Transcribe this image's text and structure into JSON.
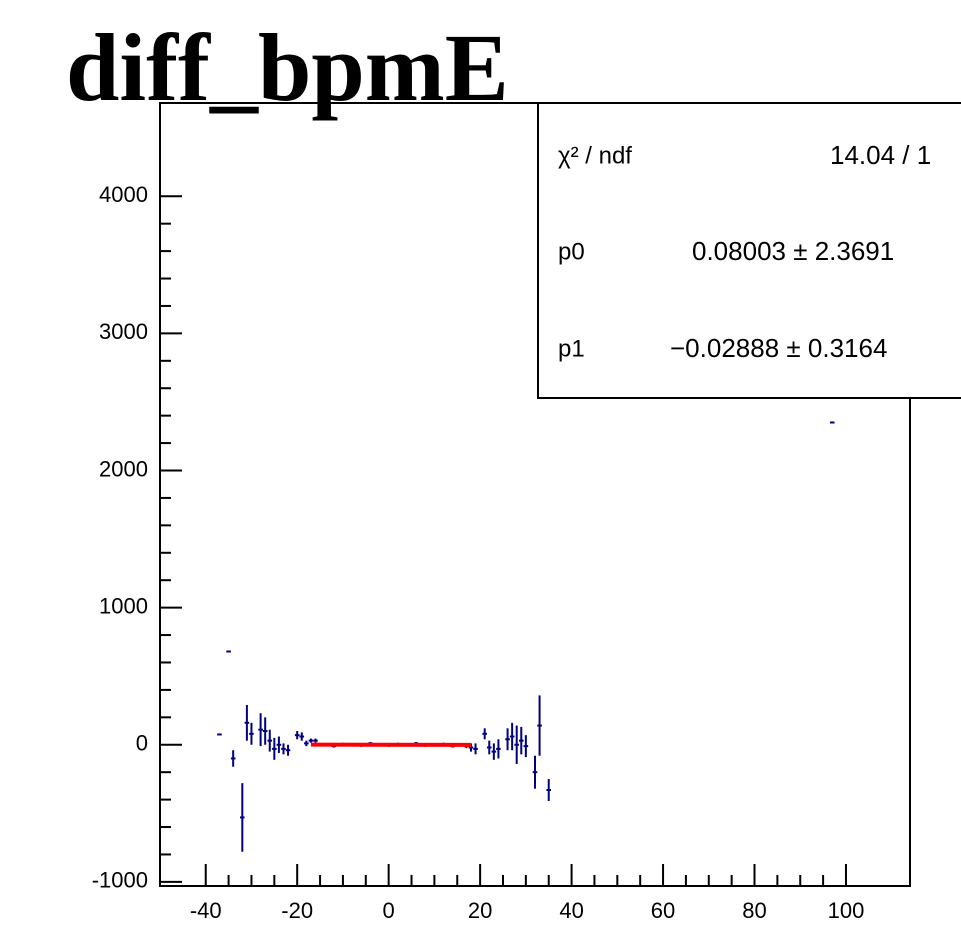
{
  "chart_data": {
    "type": "errorbar",
    "title": "diff_bpmE",
    "x": [
      -37,
      -35,
      -34,
      -32,
      -31,
      -30,
      -28,
      -27,
      -26,
      -25,
      -24,
      -23,
      -22,
      -20,
      -19,
      -18,
      -17,
      -16,
      -14,
      -12,
      -10,
      -8,
      -6,
      -4,
      -2,
      0,
      2,
      4,
      6,
      8,
      10,
      12,
      14,
      16,
      17,
      18,
      19,
      21,
      22,
      23,
      24,
      26,
      27,
      28,
      29,
      30,
      32,
      33,
      35,
      97
    ],
    "values": [
      75,
      680,
      -100,
      -530,
      160,
      80,
      110,
      100,
      30,
      -30,
      0,
      -30,
      -40,
      70,
      60,
      10,
      30,
      30,
      0,
      -10,
      5,
      0,
      -5,
      10,
      0,
      -5,
      5,
      0,
      10,
      -5,
      0,
      5,
      -10,
      0,
      -10,
      -20,
      -30,
      80,
      -20,
      -50,
      -30,
      40,
      60,
      0,
      30,
      -10,
      -200,
      140,
      -330,
      2350
    ],
    "errors": [
      0,
      0,
      60,
      250,
      130,
      80,
      120,
      100,
      80,
      80,
      60,
      40,
      40,
      30,
      30,
      20,
      15,
      15,
      10,
      10,
      10,
      10,
      10,
      10,
      10,
      10,
      10,
      10,
      10,
      10,
      10,
      10,
      10,
      10,
      15,
      30,
      40,
      40,
      50,
      60,
      70,
      80,
      100,
      140,
      100,
      80,
      120,
      220,
      80,
      0
    ],
    "color": "#000080",
    "fit": {
      "x": [
        -17,
        18
      ],
      "values": [
        0.57,
        -0.44
      ],
      "color": "#ff0000"
    },
    "xlim": [
      -50,
      114
    ],
    "xticks": [
      -40,
      -20,
      0,
      20,
      40,
      60,
      80,
      100
    ],
    "ylim": [
      -1030,
      4680
    ],
    "yticks": [
      -1000,
      0,
      1000,
      2000,
      3000,
      4000
    ],
    "stats": [
      {
        "label": "χ² / ndf",
        "value": "14.04 / 1"
      },
      {
        "label": "p0",
        "value": "0.08003 ± 2.3691"
      },
      {
        "label": "p1",
        "value": "−0.02888 ± 0.3164"
      }
    ]
  }
}
